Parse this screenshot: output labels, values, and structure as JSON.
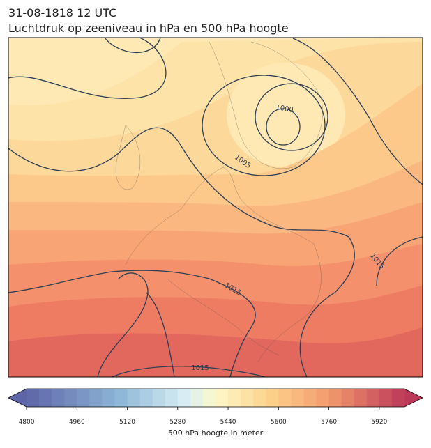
{
  "title": "31-08-1818 12 UTC",
  "subtitle": "Luchtdruk op zeeniveau in hPa en 500 hPa hoogte",
  "contour_labels": [
    "1000",
    "1005",
    "1015",
    "1015",
    "1015"
  ],
  "colorbar": {
    "label": "500 hPa hoogte in meter",
    "range": [
      4800,
      6000
    ],
    "ticks": [
      4800,
      4960,
      5120,
      5280,
      5440,
      5600,
      5760,
      5920
    ]
  }
}
